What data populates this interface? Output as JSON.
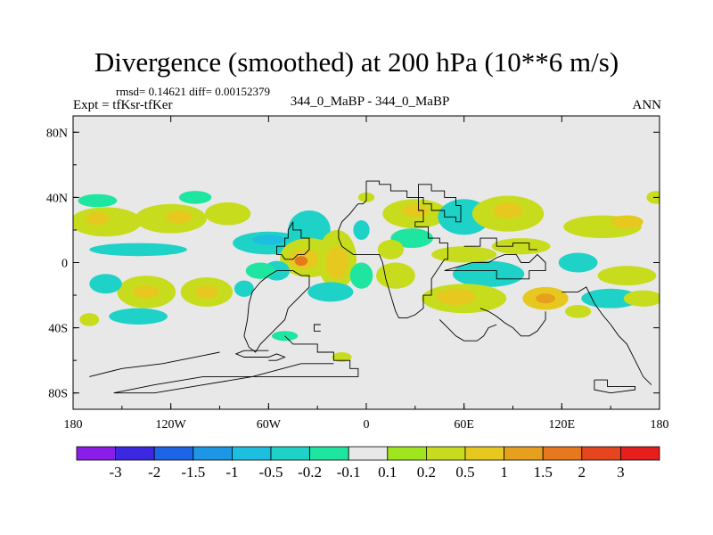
{
  "chart_data": {
    "type": "heatmap",
    "title": "Divergence (smoothed) at 200 hPa (10**6 m/s)",
    "stats": "rmsd= 0.14621 diff= 0.00152379",
    "expt": "Expt = tfKsr-tfKer",
    "center_label": "344_0_MaBP - 344_0_MaBP",
    "season": "ANN",
    "x_range": [
      -180,
      180
    ],
    "y_range": [
      -90,
      90
    ],
    "x_ticks": [
      {
        "value": -180,
        "label": "180"
      },
      {
        "value": -120,
        "label": "120W"
      },
      {
        "value": -60,
        "label": "60W"
      },
      {
        "value": 0,
        "label": "0"
      },
      {
        "value": 60,
        "label": "60E"
      },
      {
        "value": 120,
        "label": "120E"
      },
      {
        "value": 180,
        "label": "180"
      }
    ],
    "y_ticks": [
      {
        "value": 80,
        "label": "80N"
      },
      {
        "value": 40,
        "label": "40N"
      },
      {
        "value": 0,
        "label": "0"
      },
      {
        "value": -40,
        "label": "40S"
      },
      {
        "value": -80,
        "label": "80S"
      }
    ],
    "colorbar": {
      "colors": [
        "#8a1ee8",
        "#3c28e0",
        "#1e64e6",
        "#1e96e6",
        "#1ebee0",
        "#1ed2c8",
        "#1ee6a0",
        "#e8e8e8",
        "#a0e61e",
        "#c8dc1e",
        "#e6c81e",
        "#e6a01e",
        "#e6781e",
        "#e6461e",
        "#e61e1e"
      ],
      "labels": [
        "-3",
        "-2",
        "-1.5",
        "-1",
        "-0.5",
        "-0.2",
        "-0.1",
        "0.1",
        "0.2",
        "0.5",
        "1",
        "1.5",
        "2",
        "3"
      ]
    },
    "field_blobs": [
      {
        "lon": -160,
        "lat": 25,
        "rx": 22,
        "ry": 9,
        "level": 9
      },
      {
        "lon": -165,
        "lat": 27,
        "rx": 7,
        "ry": 4,
        "level": 10
      },
      {
        "lon": -120,
        "lat": 27,
        "rx": 22,
        "ry": 9,
        "level": 9
      },
      {
        "lon": -115,
        "lat": 28,
        "rx": 8,
        "ry": 4,
        "level": 10
      },
      {
        "lon": -85,
        "lat": 30,
        "rx": 14,
        "ry": 7,
        "level": 9
      },
      {
        "lon": -105,
        "lat": 40,
        "rx": 10,
        "ry": 4,
        "level": 6
      },
      {
        "lon": -165,
        "lat": 38,
        "rx": 12,
        "ry": 4,
        "level": 6
      },
      {
        "lon": -140,
        "lat": 8,
        "rx": 30,
        "ry": 4,
        "level": 5
      },
      {
        "lon": -60,
        "lat": 12,
        "rx": 22,
        "ry": 7,
        "level": 5
      },
      {
        "lon": -60,
        "lat": 14,
        "rx": 10,
        "ry": 3,
        "level": 4
      },
      {
        "lon": -35,
        "lat": 20,
        "rx": 13,
        "ry": 12,
        "level": 5
      },
      {
        "lon": -35,
        "lat": 3,
        "rx": 18,
        "ry": 12,
        "level": 9
      },
      {
        "lon": -38,
        "lat": 2,
        "rx": 10,
        "ry": 6,
        "level": 10
      },
      {
        "lon": -40,
        "lat": 1,
        "rx": 4,
        "ry": 3,
        "level": 12
      },
      {
        "lon": -18,
        "lat": 2,
        "rx": 12,
        "ry": 18,
        "level": 9
      },
      {
        "lon": -18,
        "lat": 0,
        "rx": 7,
        "ry": 10,
        "level": 10
      },
      {
        "lon": -3,
        "lat": -8,
        "rx": 7,
        "ry": 8,
        "level": 6
      },
      {
        "lon": -55,
        "lat": -5,
        "rx": 8,
        "ry": 6,
        "level": 5
      },
      {
        "lon": -22,
        "lat": -18,
        "rx": 14,
        "ry": 6,
        "level": 5
      },
      {
        "lon": -65,
        "lat": -5,
        "rx": 9,
        "ry": 5,
        "level": 6
      },
      {
        "lon": -135,
        "lat": -18,
        "rx": 18,
        "ry": 10,
        "level": 9
      },
      {
        "lon": -135,
        "lat": -18,
        "rx": 8,
        "ry": 4,
        "level": 10
      },
      {
        "lon": -160,
        "lat": -13,
        "rx": 10,
        "ry": 6,
        "level": 5
      },
      {
        "lon": -98,
        "lat": -18,
        "rx": 16,
        "ry": 9,
        "level": 9
      },
      {
        "lon": -98,
        "lat": -18,
        "rx": 7,
        "ry": 4,
        "level": 10
      },
      {
        "lon": -75,
        "lat": -16,
        "rx": 6,
        "ry": 5,
        "level": 5
      },
      {
        "lon": -140,
        "lat": -33,
        "rx": 18,
        "ry": 5,
        "level": 5
      },
      {
        "lon": -170,
        "lat": -35,
        "rx": 6,
        "ry": 4,
        "level": 9
      },
      {
        "lon": -15,
        "lat": -58,
        "rx": 6,
        "ry": 3,
        "level": 9
      },
      {
        "lon": -50,
        "lat": -45,
        "rx": 8,
        "ry": 3,
        "level": 6
      },
      {
        "lon": 30,
        "lat": 30,
        "rx": 20,
        "ry": 9,
        "level": 9
      },
      {
        "lon": 30,
        "lat": 32,
        "rx": 8,
        "ry": 4,
        "level": 10
      },
      {
        "lon": 28,
        "lat": 15,
        "rx": 13,
        "ry": 6,
        "level": 6
      },
      {
        "lon": 15,
        "lat": 8,
        "rx": 8,
        "ry": 6,
        "level": 9
      },
      {
        "lon": 18,
        "lat": -8,
        "rx": 12,
        "ry": 8,
        "level": 9
      },
      {
        "lon": 60,
        "lat": 28,
        "rx": 16,
        "ry": 11,
        "level": 5
      },
      {
        "lon": 87,
        "lat": 30,
        "rx": 22,
        "ry": 11,
        "level": 9
      },
      {
        "lon": 87,
        "lat": 32,
        "rx": 9,
        "ry": 5,
        "level": 10
      },
      {
        "lon": 60,
        "lat": 5,
        "rx": 20,
        "ry": 5,
        "level": 9
      },
      {
        "lon": 95,
        "lat": 10,
        "rx": 18,
        "ry": 5,
        "level": 9
      },
      {
        "lon": 75,
        "lat": -7,
        "rx": 22,
        "ry": 8,
        "level": 5
      },
      {
        "lon": 60,
        "lat": -22,
        "rx": 26,
        "ry": 9,
        "level": 9
      },
      {
        "lon": 55,
        "lat": -21,
        "rx": 12,
        "ry": 5,
        "level": 10
      },
      {
        "lon": 110,
        "lat": -22,
        "rx": 14,
        "ry": 7,
        "level": 10
      },
      {
        "lon": 110,
        "lat": -22,
        "rx": 6,
        "ry": 3,
        "level": 11
      },
      {
        "lon": 145,
        "lat": 22,
        "rx": 24,
        "ry": 7,
        "level": 9
      },
      {
        "lon": 160,
        "lat": 25,
        "rx": 10,
        "ry": 4,
        "level": 10
      },
      {
        "lon": 130,
        "lat": 0,
        "rx": 12,
        "ry": 6,
        "level": 5
      },
      {
        "lon": 160,
        "lat": -8,
        "rx": 18,
        "ry": 6,
        "level": 9
      },
      {
        "lon": 150,
        "lat": -22,
        "rx": 18,
        "ry": 6,
        "level": 5
      },
      {
        "lon": 170,
        "lat": -22,
        "rx": 12,
        "ry": 5,
        "level": 9
      },
      {
        "lon": 130,
        "lat": -30,
        "rx": 8,
        "ry": 4,
        "level": 9
      },
      {
        "lon": 178,
        "lat": 40,
        "rx": 6,
        "ry": 4,
        "level": 9
      },
      {
        "lon": 0,
        "lat": 40,
        "rx": 5,
        "ry": 3,
        "level": 9
      },
      {
        "lon": -3,
        "lat": 20,
        "rx": 5,
        "ry": 6,
        "level": 5
      }
    ],
    "coastlines": [
      [
        [
          0,
          50
        ],
        [
          8,
          50
        ],
        [
          8,
          48
        ],
        [
          15,
          48
        ],
        [
          15,
          44
        ],
        [
          25,
          44
        ],
        [
          25,
          40
        ],
        [
          32,
          40
        ],
        [
          32,
          32
        ],
        [
          35,
          32
        ],
        [
          35,
          25
        ],
        [
          30,
          25
        ],
        [
          30,
          22
        ],
        [
          38,
          22
        ],
        [
          38,
          15
        ],
        [
          45,
          15
        ],
        [
          45,
          12
        ],
        [
          50,
          12
        ],
        [
          50,
          2
        ],
        [
          48,
          2
        ],
        [
          40,
          -10
        ],
        [
          40,
          -20
        ],
        [
          35,
          -20
        ],
        [
          35,
          -28
        ],
        [
          30,
          -32
        ],
        [
          25,
          -34
        ],
        [
          20,
          -34
        ],
        [
          18,
          -30
        ],
        [
          15,
          -20
        ],
        [
          12,
          -10
        ],
        [
          10,
          0
        ],
        [
          8,
          5
        ],
        [
          5,
          5
        ],
        [
          0,
          5
        ],
        [
          -8,
          5
        ],
        [
          -15,
          10
        ],
        [
          -17,
          15
        ],
        [
          -17,
          20
        ],
        [
          -15,
          25
        ],
        [
          -10,
          30
        ],
        [
          -6,
          35
        ],
        [
          -5,
          36
        ],
        [
          -2,
          36
        ],
        [
          0,
          38
        ],
        [
          0,
          50
        ]
      ],
      [
        [
          32,
          40
        ],
        [
          32,
          48
        ],
        [
          40,
          48
        ],
        [
          40,
          44
        ],
        [
          48,
          44
        ],
        [
          48,
          40
        ],
        [
          55,
          40
        ],
        [
          55,
          35
        ],
        [
          58,
          35
        ],
        [
          58,
          25
        ],
        [
          55,
          25
        ],
        [
          55,
          28
        ],
        [
          48,
          28
        ],
        [
          48,
          32
        ],
        [
          40,
          32
        ],
        [
          40,
          36
        ],
        [
          35,
          36
        ],
        [
          35,
          40
        ],
        [
          32,
          40
        ]
      ],
      [
        [
          -45,
          25
        ],
        [
          -45,
          20
        ],
        [
          -40,
          20
        ],
        [
          -40,
          15
        ],
        [
          -35,
          15
        ],
        [
          -35,
          8
        ],
        [
          -38,
          5
        ],
        [
          -42,
          5
        ],
        [
          -45,
          2
        ],
        [
          -50,
          2
        ],
        [
          -52,
          5
        ],
        [
          -55,
          5
        ],
        [
          -55,
          10
        ],
        [
          -50,
          10
        ],
        [
          -50,
          15
        ],
        [
          -48,
          15
        ],
        [
          -48,
          20
        ],
        [
          -45,
          25
        ]
      ],
      [
        [
          -55,
          -5
        ],
        [
          -45,
          -5
        ],
        [
          -40,
          -8
        ],
        [
          -35,
          -8
        ],
        [
          -35,
          -15
        ],
        [
          -40,
          -20
        ],
        [
          -45,
          -25
        ],
        [
          -48,
          -28
        ],
        [
          -50,
          -35
        ],
        [
          -55,
          -40
        ],
        [
          -60,
          -45
        ],
        [
          -65,
          -50
        ],
        [
          -68,
          -55
        ],
        [
          -72,
          -52
        ],
        [
          -75,
          -45
        ],
        [
          -73,
          -35
        ],
        [
          -72,
          -25
        ],
        [
          -70,
          -18
        ],
        [
          -65,
          -12
        ],
        [
          -60,
          -8
        ],
        [
          -55,
          -5
        ]
      ],
      [
        [
          -50,
          -45
        ],
        [
          -45,
          -50
        ],
        [
          -30,
          -50
        ],
        [
          -30,
          -55
        ],
        [
          -20,
          -55
        ],
        [
          -20,
          -60
        ],
        [
          -10,
          -60
        ],
        [
          -10,
          -65
        ],
        [
          -5,
          -65
        ],
        [
          -5,
          -70
        ],
        [
          -100,
          -70
        ],
        [
          -130,
          -75
        ],
        [
          -155,
          -80
        ],
        [
          -130,
          -80
        ],
        [
          -100,
          -75
        ],
        [
          -70,
          -70
        ],
        [
          -40,
          -62
        ],
        [
          -20,
          -62
        ]
      ],
      [
        [
          -60,
          -60
        ],
        [
          -55,
          -60
        ],
        [
          -50,
          -58
        ],
        [
          -55,
          -56
        ],
        [
          -60,
          -58
        ],
        [
          -75,
          -58
        ],
        [
          -80,
          -56
        ],
        [
          -75,
          -54
        ],
        [
          -60,
          -54
        ]
      ],
      [
        [
          -90,
          -55
        ],
        [
          -100,
          -57
        ],
        [
          -125,
          -62
        ],
        [
          -150,
          -65
        ],
        [
          -170,
          -70
        ]
      ],
      [
        [
          -28,
          -38
        ],
        [
          -32,
          -38
        ],
        [
          -32,
          -42
        ],
        [
          -28,
          -42
        ]
      ],
      [
        [
          48,
          -5
        ],
        [
          80,
          -5
        ],
        [
          80,
          -10
        ],
        [
          100,
          -10
        ],
        [
          100,
          -5
        ],
        [
          110,
          -5
        ],
        [
          110,
          0
        ],
        [
          105,
          5
        ],
        [
          100,
          0
        ],
        [
          95,
          0
        ],
        [
          92,
          5
        ],
        [
          85,
          5
        ],
        [
          80,
          3
        ],
        [
          75,
          0
        ],
        [
          65,
          0
        ],
        [
          58,
          -2
        ],
        [
          48,
          -5
        ]
      ],
      [
        [
          70,
          -28
        ],
        [
          75,
          -30
        ],
        [
          80,
          -33
        ],
        [
          85,
          -37
        ],
        [
          90,
          -40
        ],
        [
          95,
          -45
        ],
        [
          100,
          -45
        ],
        [
          105,
          -42
        ],
        [
          110,
          -35
        ],
        [
          110,
          -30
        ]
      ],
      [
        [
          120,
          -18
        ],
        [
          130,
          -18
        ],
        [
          135,
          -15
        ],
        [
          140,
          -25
        ],
        [
          145,
          -32
        ],
        [
          150,
          -38
        ],
        [
          155,
          -45
        ],
        [
          160,
          -50
        ],
        [
          165,
          -60
        ],
        [
          170,
          -70
        ],
        [
          175,
          -75
        ]
      ],
      [
        [
          45,
          -35
        ],
        [
          50,
          -40
        ],
        [
          55,
          -45
        ],
        [
          60,
          -48
        ],
        [
          68,
          -48
        ],
        [
          72,
          -45
        ],
        [
          75,
          -40
        ],
        [
          80,
          -38
        ]
      ],
      [
        [
          140,
          -72
        ],
        [
          148,
          -72
        ],
        [
          148,
          -76
        ],
        [
          165,
          -76
        ],
        [
          165,
          -78
        ],
        [
          150,
          -80
        ],
        [
          140,
          -78
        ],
        [
          140,
          -72
        ]
      ],
      [
        [
          60,
          10
        ],
        [
          70,
          10
        ],
        [
          70,
          15
        ],
        [
          80,
          15
        ],
        [
          80,
          10
        ],
        [
          90,
          10
        ],
        [
          90,
          12
        ],
        [
          100,
          12
        ],
        [
          100,
          8
        ],
        [
          105,
          8
        ]
      ]
    ]
  }
}
